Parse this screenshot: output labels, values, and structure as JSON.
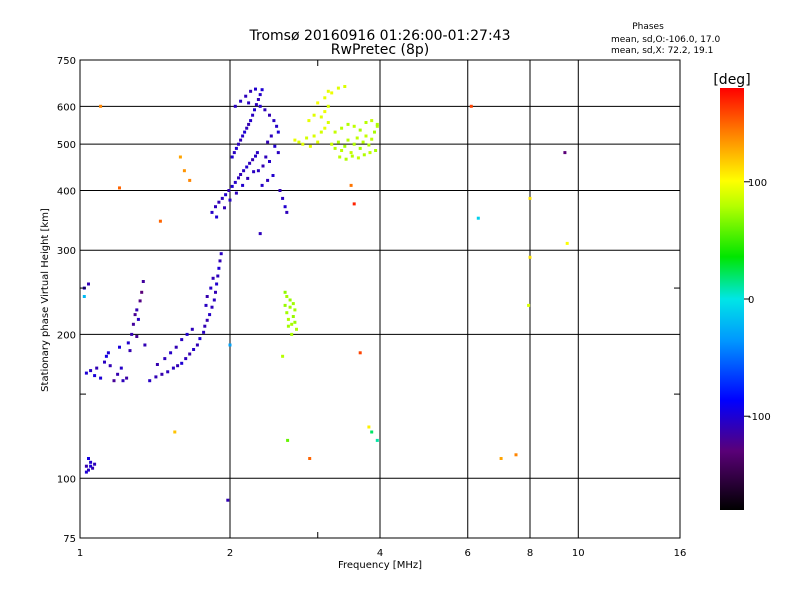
{
  "chart_data": {
    "type": "scatter",
    "title": "Tromsø 20160916 01:26:00-01:27:43",
    "subtitle": "RwPretec (8p)",
    "stats": {
      "heading": "Phases",
      "line1": "mean, sd,O:-106.0, 17.0",
      "line2": "mean, sd,X:  72.2, 19.1"
    },
    "xlabel": "Frequency [MHz]",
    "ylabel": "Stationary phase Virtual Height [km]",
    "x_scale": "log",
    "y_scale": "log",
    "xlim": [
      1,
      16
    ],
    "ylim": [
      75,
      750
    ],
    "x_ticks": [
      1,
      2,
      4,
      6,
      8,
      10,
      16
    ],
    "x_minor_ticks": [
      3
    ],
    "y_ticks": [
      75,
      100,
      200,
      300,
      400,
      500,
      600,
      750
    ],
    "y_minor_ticks": [
      150,
      250
    ],
    "grid": true,
    "colorbar": {
      "title": "[deg]",
      "range": [
        -180,
        180
      ],
      "ticks": [
        100,
        0,
        -100
      ]
    },
    "series": [
      {
        "points": [
          [
            1.03,
            103,
            -100
          ],
          [
            1.04,
            104,
            -105
          ],
          [
            1.05,
            106,
            -98
          ],
          [
            1.06,
            105,
            -110
          ],
          [
            1.05,
            108,
            -102
          ],
          [
            1.04,
            110,
            -96
          ],
          [
            1.07,
            107,
            -108
          ],
          [
            1.03,
            106,
            -112
          ],
          [
            1.03,
            166,
            -100
          ],
          [
            1.05,
            168,
            -105
          ],
          [
            1.07,
            164,
            -98
          ],
          [
            1.08,
            170,
            -110
          ],
          [
            1.1,
            162,
            -100
          ],
          [
            1.12,
            175,
            -106
          ],
          [
            1.13,
            180,
            -95
          ],
          [
            1.15,
            172,
            -110
          ],
          [
            1.17,
            160,
            -120
          ],
          [
            1.19,
            165,
            -112
          ],
          [
            1.21,
            170,
            -104
          ],
          [
            1.22,
            160,
            -108
          ],
          [
            1.24,
            162,
            -115
          ],
          [
            1.14,
            183,
            -100
          ],
          [
            1.2,
            188,
            -98
          ],
          [
            1.25,
            192,
            -102
          ],
          [
            1.27,
            200,
            -112
          ],
          [
            1.28,
            210,
            -118
          ],
          [
            1.29,
            220,
            -121
          ],
          [
            1.3,
            225,
            -110
          ],
          [
            1.31,
            215,
            -105
          ],
          [
            1.32,
            235,
            -126
          ],
          [
            1.33,
            245,
            -130
          ],
          [
            1.34,
            258,
            -118
          ],
          [
            1.3,
            198,
            -120
          ],
          [
            1.26,
            185,
            -112
          ],
          [
            1.35,
            190,
            -110
          ],
          [
            1.38,
            160,
            -105
          ],
          [
            1.42,
            163,
            -110
          ],
          [
            1.46,
            165,
            -112
          ],
          [
            1.5,
            167,
            -108
          ],
          [
            1.54,
            170,
            -106
          ],
          [
            1.57,
            172,
            -110
          ],
          [
            1.6,
            174,
            -100
          ],
          [
            1.63,
            178,
            -108
          ],
          [
            1.66,
            182,
            -112
          ],
          [
            1.69,
            186,
            -104
          ],
          [
            1.72,
            190,
            -110
          ],
          [
            1.74,
            196,
            -100
          ],
          [
            1.77,
            202,
            -106
          ],
          [
            1.43,
            173,
            -112
          ],
          [
            1.48,
            178,
            -108
          ],
          [
            1.52,
            183,
            -104
          ],
          [
            1.56,
            188,
            -110
          ],
          [
            1.6,
            195,
            -106
          ],
          [
            1.64,
            200,
            -102
          ],
          [
            1.68,
            205,
            -108
          ],
          [
            1.78,
            208,
            -110
          ],
          [
            1.8,
            214,
            -112
          ],
          [
            1.82,
            220,
            -104
          ],
          [
            1.84,
            228,
            -108
          ],
          [
            1.86,
            236,
            -106
          ],
          [
            1.87,
            245,
            -110
          ],
          [
            1.88,
            255,
            -102
          ],
          [
            1.89,
            265,
            -108
          ],
          [
            1.9,
            275,
            -100
          ],
          [
            1.91,
            285,
            -110
          ],
          [
            1.92,
            295,
            -106
          ],
          [
            1.8,
            240,
            -112
          ],
          [
            1.83,
            250,
            -104
          ],
          [
            1.85,
            262,
            -110
          ],
          [
            1.79,
            230,
            -106
          ],
          [
            1.84,
            360,
            -104
          ],
          [
            1.87,
            370,
            -108
          ],
          [
            1.9,
            378,
            -110
          ],
          [
            1.93,
            385,
            -106
          ],
          [
            1.96,
            392,
            -102
          ],
          [
            1.99,
            400,
            -110
          ],
          [
            2.02,
            408,
            -100
          ],
          [
            2.05,
            416,
            -104
          ],
          [
            2.08,
            425,
            -108
          ],
          [
            2.1,
            432,
            -110
          ],
          [
            2.13,
            440,
            -106
          ],
          [
            2.16,
            448,
            -102
          ],
          [
            2.19,
            456,
            -108
          ],
          [
            2.22,
            464,
            -112
          ],
          [
            2.25,
            472,
            -104
          ],
          [
            2.27,
            480,
            -106
          ],
          [
            1.88,
            352,
            -100
          ],
          [
            1.95,
            368,
            -110
          ],
          [
            2.0,
            382,
            -104
          ],
          [
            2.06,
            395,
            -108
          ],
          [
            2.12,
            410,
            -102
          ],
          [
            2.17,
            424,
            -110
          ],
          [
            2.23,
            438,
            -106
          ],
          [
            2.02,
            470,
            -100
          ],
          [
            2.04,
            480,
            -106
          ],
          [
            2.06,
            490,
            -102
          ],
          [
            2.08,
            500,
            -108
          ],
          [
            2.1,
            510,
            -110
          ],
          [
            2.12,
            520,
            -104
          ],
          [
            2.14,
            530,
            -100
          ],
          [
            2.16,
            540,
            -108
          ],
          [
            2.18,
            550,
            -112
          ],
          [
            2.2,
            560,
            -104
          ],
          [
            2.22,
            575,
            -106
          ],
          [
            2.24,
            590,
            -102
          ],
          [
            2.26,
            605,
            -108
          ],
          [
            2.28,
            620,
            -110
          ],
          [
            2.3,
            635,
            -104
          ],
          [
            2.32,
            650,
            -100
          ],
          [
            2.05,
            600,
            -106
          ],
          [
            2.1,
            615,
            -104
          ],
          [
            2.15,
            630,
            -108
          ],
          [
            2.2,
            645,
            -110
          ],
          [
            2.25,
            652,
            -102
          ],
          [
            2.18,
            610,
            -106
          ],
          [
            2.3,
            600,
            -104
          ],
          [
            2.35,
            590,
            -108
          ],
          [
            2.4,
            575,
            -110
          ],
          [
            2.45,
            560,
            -106
          ],
          [
            2.48,
            545,
            -104
          ],
          [
            2.5,
            530,
            -100
          ],
          [
            2.42,
            520,
            -108
          ],
          [
            2.38,
            505,
            -110
          ],
          [
            2.46,
            495,
            -102
          ],
          [
            2.5,
            480,
            -106
          ],
          [
            2.36,
            470,
            -108
          ],
          [
            2.4,
            460,
            -104
          ],
          [
            2.33,
            450,
            -110
          ],
          [
            2.28,
            440,
            -106
          ],
          [
            2.44,
            430,
            -102
          ],
          [
            2.38,
            420,
            -108
          ],
          [
            2.32,
            410,
            -104
          ],
          [
            2.52,
            400,
            -110
          ],
          [
            2.55,
            385,
            -106
          ],
          [
            2.58,
            370,
            -102
          ],
          [
            2.6,
            360,
            -108
          ],
          [
            3.2,
            500,
            85
          ],
          [
            3.25,
            490,
            80
          ],
          [
            3.3,
            505,
            78
          ],
          [
            3.35,
            485,
            82
          ],
          [
            3.4,
            495,
            75
          ],
          [
            3.45,
            510,
            80
          ],
          [
            3.5,
            480,
            84
          ],
          [
            3.55,
            500,
            78
          ],
          [
            3.6,
            515,
            82
          ],
          [
            3.65,
            490,
            76
          ],
          [
            3.7,
            505,
            80
          ],
          [
            3.75,
            520,
            84
          ],
          [
            3.8,
            498,
            78
          ],
          [
            3.85,
            512,
            82
          ],
          [
            3.9,
            530,
            76
          ],
          [
            3.95,
            545,
            80
          ],
          [
            3.32,
            470,
            82
          ],
          [
            3.42,
            465,
            78
          ],
          [
            3.52,
            472,
            80
          ],
          [
            3.62,
            468,
            84
          ],
          [
            3.72,
            475,
            78
          ],
          [
            3.82,
            480,
            82
          ],
          [
            3.92,
            485,
            76
          ],
          [
            3.25,
            530,
            84
          ],
          [
            3.35,
            540,
            80
          ],
          [
            3.45,
            550,
            78
          ],
          [
            3.55,
            545,
            82
          ],
          [
            3.65,
            535,
            76
          ],
          [
            3.75,
            555,
            80
          ],
          [
            3.85,
            560,
            84
          ],
          [
            3.95,
            550,
            78
          ],
          [
            2.7,
            510,
            95
          ],
          [
            2.75,
            505,
            90
          ],
          [
            2.8,
            500,
            92
          ],
          [
            2.85,
            515,
            88
          ],
          [
            2.9,
            495,
            94
          ],
          [
            2.95,
            520,
            90
          ],
          [
            3.0,
            505,
            92
          ],
          [
            3.05,
            530,
            88
          ],
          [
            3.1,
            540,
            94
          ],
          [
            3.15,
            555,
            90
          ],
          [
            3.05,
            570,
            92
          ],
          [
            3.1,
            585,
            96
          ],
          [
            3.15,
            600,
            90
          ],
          [
            2.88,
            560,
            94
          ],
          [
            2.95,
            575,
            92
          ],
          [
            3.0,
            610,
            98
          ],
          [
            3.1,
            625,
            94
          ],
          [
            3.2,
            640,
            96
          ],
          [
            3.3,
            655,
            92
          ],
          [
            3.4,
            660,
            90
          ],
          [
            3.15,
            645,
            94
          ],
          [
            2.58,
            230,
            72
          ],
          [
            2.6,
            222,
            75
          ],
          [
            2.62,
            215,
            78
          ],
          [
            2.64,
            228,
            74
          ],
          [
            2.66,
            210,
            76
          ],
          [
            2.68,
            218,
            72
          ],
          [
            2.7,
            225,
            75
          ],
          [
            2.72,
            205,
            78
          ],
          [
            2.6,
            240,
            76
          ],
          [
            2.64,
            236,
            72
          ],
          [
            2.68,
            232,
            74
          ],
          [
            2.62,
            208,
            75
          ],
          [
            2.66,
            200,
            77
          ],
          [
            2.7,
            212,
            73
          ],
          [
            2.55,
            180,
            80
          ],
          [
            2.58,
            245,
            70
          ],
          [
            1.02,
            250,
            -104
          ],
          [
            1.04,
            255,
            -110
          ],
          [
            1.02,
            240,
            -20
          ],
          [
            1.1,
            600,
            140
          ],
          [
            1.2,
            405,
            150
          ],
          [
            1.62,
            440,
            135
          ],
          [
            1.59,
            470,
            130
          ],
          [
            1.66,
            420,
            140
          ],
          [
            1.55,
            125,
            120
          ],
          [
            1.45,
            345,
            150
          ],
          [
            1.98,
            90,
            -110
          ],
          [
            2.0,
            190,
            -30
          ],
          [
            2.3,
            325,
            -108
          ],
          [
            2.61,
            120,
            60
          ],
          [
            2.89,
            110,
            150
          ],
          [
            3.5,
            410,
            145
          ],
          [
            3.55,
            375,
            170
          ],
          [
            3.65,
            183,
            160
          ],
          [
            3.85,
            125,
            20
          ],
          [
            3.95,
            120,
            10
          ],
          [
            3.8,
            128,
            105
          ],
          [
            6.1,
            600,
            160
          ],
          [
            6.3,
            350,
            -10
          ],
          [
            7.0,
            110,
            130
          ],
          [
            7.5,
            112,
            140
          ],
          [
            8.0,
            290,
            110
          ],
          [
            7.95,
            230,
            90
          ],
          [
            8.0,
            385,
            110
          ],
          [
            9.4,
            480,
            -130
          ],
          [
            9.5,
            310,
            100
          ]
        ]
      }
    ]
  }
}
